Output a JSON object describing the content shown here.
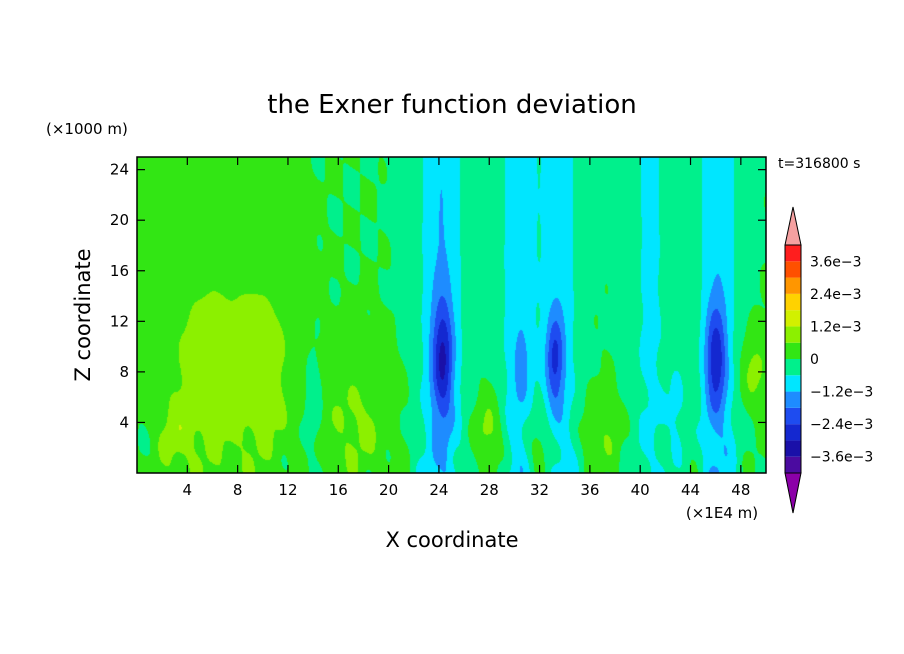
{
  "chart_data": {
    "type": "heatmap",
    "title": "the Exner function deviation",
    "xlabel": "X coordinate",
    "ylabel": "Z coordinate",
    "x_unit": "(×1E4 m)",
    "y_unit": "(×1000 m)",
    "time_label": "t=316800 s",
    "xlim": [
      0,
      50
    ],
    "ylim": [
      0,
      25
    ],
    "x_ticks": [
      4,
      8,
      12,
      16,
      20,
      24,
      28,
      32,
      36,
      40,
      44,
      48
    ],
    "y_ticks": [
      4,
      8,
      12,
      16,
      20,
      24
    ],
    "colorbar": {
      "levels": [
        -0.0042,
        -0.0036,
        -0.003,
        -0.0024,
        -0.0018,
        -0.0012,
        -0.0006,
        0,
        0.0006,
        0.0012,
        0.0018,
        0.0024,
        0.003,
        0.0036,
        0.0042
      ],
      "colors": [
        "#8B00A8",
        "#4B0BA0",
        "#1A10A8",
        "#1428D0",
        "#1E4CF0",
        "#1E8CFF",
        "#00E6FF",
        "#00F08C",
        "#32E614",
        "#8CF000",
        "#D2F000",
        "#FFD200",
        "#FF9600",
        "#FF5000",
        "#FF1E1E",
        "#F5A0A0"
      ],
      "tick_values": [
        0.0036,
        0.0024,
        0.0012,
        0,
        -0.0012,
        -0.0024,
        -0.0036
      ],
      "tick_labels": [
        "3.6e−3",
        "2.4e−3",
        "1.2e−3",
        "0",
        "−1.2e−3",
        "−2.4e−3",
        "−3.6e−3"
      ]
    },
    "features": [
      {
        "kind": "blob",
        "x": 5.5,
        "z": 8,
        "sx": 3.2,
        "sz": 9,
        "v": 0.0009
      },
      {
        "kind": "blob",
        "x": 10,
        "z": 8,
        "sx": 2.6,
        "sz": 8,
        "v": 0.0009
      },
      {
        "kind": "blob",
        "x": 3,
        "z": 3,
        "sx": 1.5,
        "sz": 3,
        "v": 0.0006
      },
      {
        "kind": "blob",
        "x": 17.5,
        "z": 4,
        "sx": 3,
        "sz": 5,
        "v": 0.0007
      },
      {
        "kind": "blob",
        "x": 28,
        "z": 3,
        "sx": 1.2,
        "sz": 3,
        "v": 0.0009
      },
      {
        "kind": "blob",
        "x": 32,
        "z": 2,
        "sx": 1.2,
        "sz": 2.5,
        "v": 0.0009
      },
      {
        "kind": "blob",
        "x": 37,
        "z": 3,
        "sx": 2,
        "sz": 3,
        "v": 0.0005
      },
      {
        "kind": "blob",
        "x": 49,
        "z": 8,
        "sx": 1.2,
        "sz": 3,
        "v": 0.0008
      },
      {
        "kind": "column",
        "x": 24.2,
        "sx": 1.8,
        "v": -0.0012
      },
      {
        "kind": "column",
        "x": 30.3,
        "sx": 1.5,
        "v": -0.001
      },
      {
        "kind": "column",
        "x": 33.6,
        "sx": 1.5,
        "v": -0.001
      },
      {
        "kind": "column",
        "x": 40.8,
        "sx": 1.8,
        "v": -0.0007
      },
      {
        "kind": "column",
        "x": 46.2,
        "sx": 1.6,
        "v": -0.0011
      },
      {
        "kind": "blob",
        "x": 24.3,
        "z": 9,
        "sx": 0.8,
        "sz": 4.5,
        "v": -0.002
      },
      {
        "kind": "blob",
        "x": 33.2,
        "z": 9,
        "sx": 0.7,
        "sz": 3.5,
        "v": -0.0017
      },
      {
        "kind": "blob",
        "x": 46.0,
        "z": 9,
        "sx": 0.8,
        "sz": 4.0,
        "v": -0.0019
      },
      {
        "kind": "blob",
        "x": 30.6,
        "z": 8.5,
        "sx": 0.5,
        "sz": 2.5,
        "v": -0.0008
      },
      {
        "kind": "blob",
        "x": 14,
        "z": 5,
        "sx": 0.7,
        "sz": 4,
        "v": -0.0007
      },
      {
        "kind": "blob",
        "x": 43,
        "z": 5,
        "sx": 0.8,
        "sz": 4,
        "v": -0.0006
      }
    ]
  }
}
